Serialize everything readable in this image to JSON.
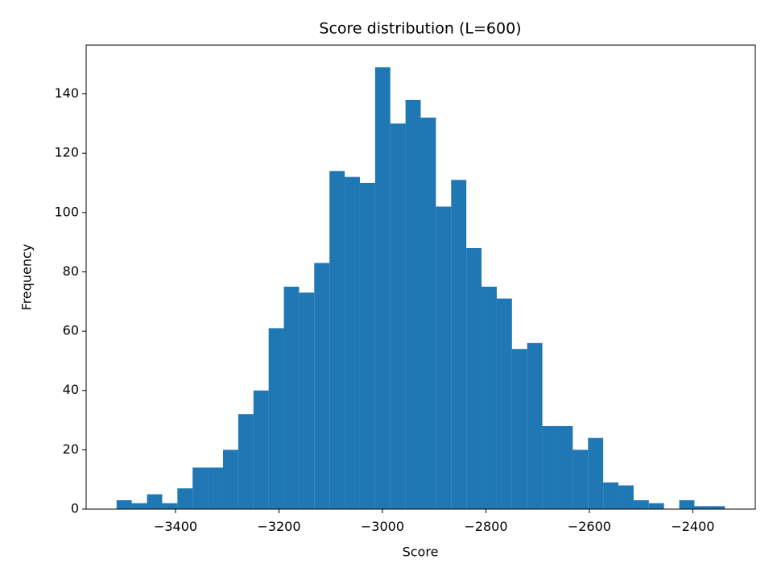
{
  "chart_data": {
    "type": "histogram",
    "title": "Score distribution (L=600)",
    "xlabel": "Score",
    "ylabel": "Frequency",
    "color": "#1f77b4",
    "bins": [
      -3514,
      -3484.6,
      -3455.2,
      -3425.8,
      -3396.4,
      -3367,
      -3337.6,
      -3308.2,
      -3278.8,
      -3249.4,
      -3220,
      -3190.6,
      -3161.2,
      -3131.8,
      -3102.4,
      -3073,
      -3043.6,
      -3014.2,
      -2984.8,
      -2955.4,
      -2926,
      -2896.6,
      -2867.2,
      -2837.8,
      -2808.4,
      -2779,
      -2749.6,
      -2720.2,
      -2690.8,
      -2661.4,
      -2632,
      -2602.6,
      -2573.2,
      -2543.8,
      -2514.4,
      -2485,
      -2455.6,
      -2426.2,
      -2396.8,
      -2367.4,
      -2338
    ],
    "values": [
      3,
      2,
      5,
      2,
      7,
      14,
      14,
      20,
      32,
      40,
      61,
      75,
      73,
      83,
      114,
      112,
      110,
      149,
      130,
      138,
      132,
      102,
      111,
      88,
      75,
      71,
      54,
      56,
      28,
      28,
      20,
      24,
      9,
      8,
      3,
      2,
      0,
      3,
      1,
      1
    ],
    "xlim": [
      -3572.8,
      -2279.2
    ],
    "xticks": [
      {
        "value": -3400,
        "label": "−3400"
      },
      {
        "value": -3200,
        "label": "−3200"
      },
      {
        "value": -3000,
        "label": "−3000"
      },
      {
        "value": -2800,
        "label": "−2800"
      },
      {
        "value": -2600,
        "label": "−2600"
      },
      {
        "value": -2400,
        "label": "−2400"
      }
    ],
    "ylim": [
      0,
      156.45
    ],
    "yticks": [
      0,
      20,
      40,
      60,
      80,
      100,
      120,
      140
    ]
  }
}
